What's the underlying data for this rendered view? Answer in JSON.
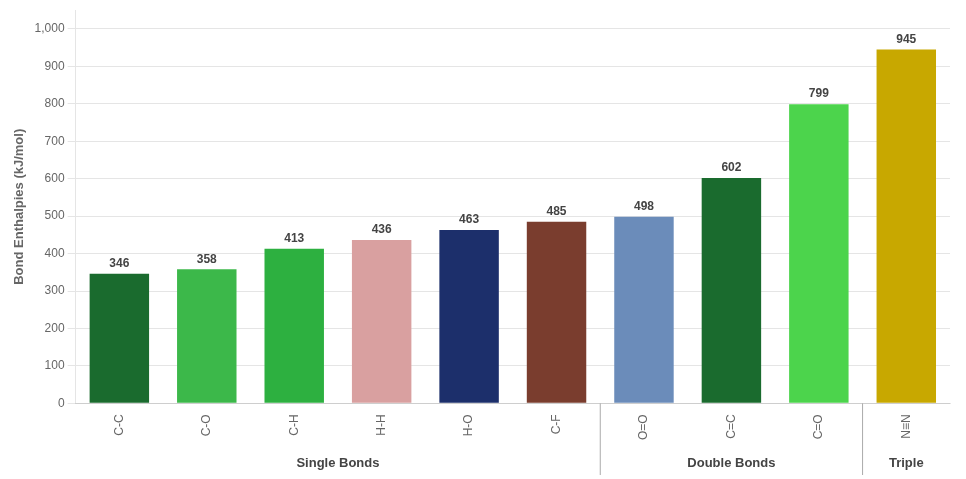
{
  "chart_data": {
    "type": "bar",
    "categories": [
      "C-C",
      "C-O",
      "C-H",
      "H-H",
      "H-O",
      "C-F",
      "O=O",
      "C=C",
      "C=O",
      "N≡N"
    ],
    "values": [
      346,
      358,
      413,
      436,
      463,
      485,
      498,
      602,
      799,
      945
    ],
    "colors": [
      "#1a6b2e",
      "#3cb84a",
      "#2db040",
      "#d9a0a0",
      "#1c2f6b",
      "#7a3d2e",
      "#6b8cba",
      "#1a6b2e",
      "#4cd44c",
      "#c8a800"
    ],
    "y_label": "Bond Enthalpies (kJ/mol)",
    "ylim": [
      0,
      1050
    ],
    "yticks": [
      0,
      100,
      200,
      300,
      400,
      500,
      600,
      700,
      800,
      900,
      {
        "value": 1000,
        "label": "1,000"
      }
    ],
    "grid": true,
    "data_labels": true,
    "annotations": [
      {
        "text": "Single Bonds",
        "categories": [
          "C-C",
          "C-O",
          "C-H",
          "H-H",
          "H-O",
          "C-F"
        ]
      },
      {
        "text": "Double Bonds",
        "categories": [
          "O=O",
          "C=C",
          "C=O"
        ]
      },
      {
        "text": "Triple",
        "categories": [
          "N≡N"
        ]
      }
    ]
  }
}
